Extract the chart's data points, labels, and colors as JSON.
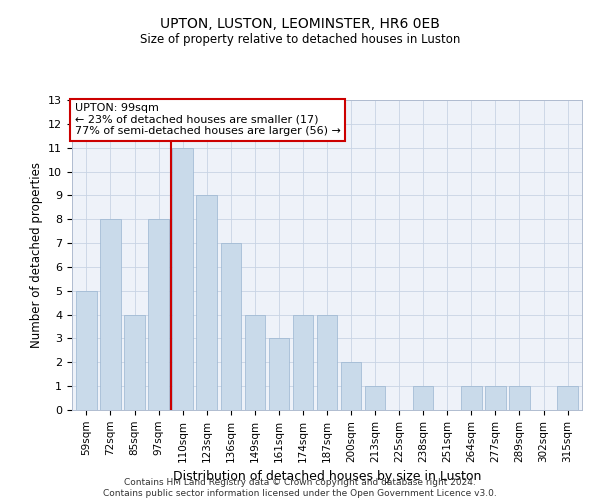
{
  "title1": "UPTON, LUSTON, LEOMINSTER, HR6 0EB",
  "title2": "Size of property relative to detached houses in Luston",
  "xlabel": "Distribution of detached houses by size in Luston",
  "ylabel": "Number of detached properties",
  "categories": [
    "59sqm",
    "72sqm",
    "85sqm",
    "97sqm",
    "110sqm",
    "123sqm",
    "136sqm",
    "149sqm",
    "161sqm",
    "174sqm",
    "187sqm",
    "200sqm",
    "213sqm",
    "225sqm",
    "238sqm",
    "251sqm",
    "264sqm",
    "277sqm",
    "289sqm",
    "302sqm",
    "315sqm"
  ],
  "values": [
    5,
    8,
    4,
    8,
    11,
    9,
    7,
    4,
    3,
    4,
    4,
    2,
    1,
    0,
    1,
    0,
    1,
    1,
    1,
    0,
    1
  ],
  "bar_color": "#c9daea",
  "bar_edge_color": "#9ab5d0",
  "grid_color": "#c8d4e4",
  "red_line_color": "#cc0000",
  "ylim": [
    0,
    13
  ],
  "yticks": [
    0,
    1,
    2,
    3,
    4,
    5,
    6,
    7,
    8,
    9,
    10,
    11,
    12,
    13
  ],
  "footer_text": "Contains HM Land Registry data © Crown copyright and database right 2024.\nContains public sector information licensed under the Open Government Licence v3.0.",
  "background_color": "#eef2f9",
  "annotation_line1": "UPTON: 99sqm",
  "annotation_line2": "← 23% of detached houses are smaller (17)",
  "annotation_line3": "77% of semi-detached houses are larger (56) →"
}
